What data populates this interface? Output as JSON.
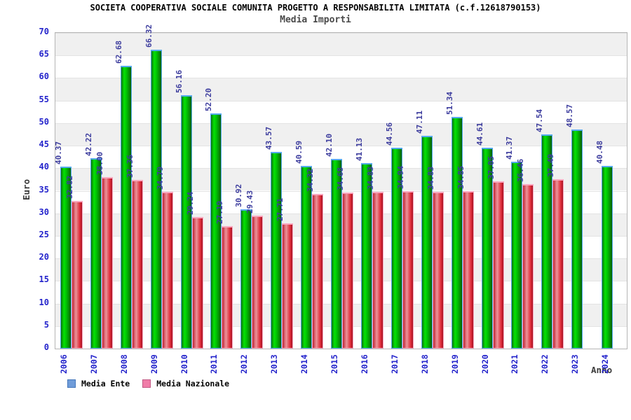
{
  "header": {
    "title": "SOCIETA COOPERATIVA SOCIALE COMUNITA PROGETTO A RESPONSABILITA LIMITATA (c.f.12618790153)",
    "subtitle": "Media Importi"
  },
  "axes": {
    "y_title": "Euro",
    "x_title": "Anno",
    "y_ticks": [
      0,
      5,
      10,
      15,
      20,
      25,
      30,
      35,
      40,
      45,
      50,
      55,
      60,
      65,
      70
    ]
  },
  "legend": [
    {
      "label": "Media Ente",
      "swatch_color": "#6f9cd9",
      "swatch_border": "#4477bb"
    },
    {
      "label": "Media Nazionale",
      "swatch_color": "#f07ca8",
      "swatch_border": "#c25a85"
    }
  ],
  "colors": {
    "bar_green": "#00c403",
    "bar_green_border": "#55aaee",
    "bar_red": "#e4626b",
    "bar_red_border": "#f9a8c0",
    "tick_label_blue": "#2323cb",
    "value_label_blue": "#3d3d9e",
    "band_gray": "#f0f0f0",
    "band_white": "#ffffff"
  },
  "chart_data": {
    "type": "bar",
    "title": "Media Importi",
    "suptitle": "SOCIETA COOPERATIVA SOCIALE COMUNITA PROGETTO A RESPONSABILITA LIMITATA (c.f.12618790153)",
    "xlabel": "Anno",
    "ylabel": "Euro",
    "ylim": [
      0,
      70
    ],
    "ytick_step": 5,
    "grid": "horizontal-bands",
    "legend_position": "bottom-left",
    "value_labels": "rotated-90-above-bars",
    "categories": [
      "2006",
      "2007",
      "2008",
      "2009",
      "2010",
      "2011",
      "2012",
      "2013",
      "2014",
      "2015",
      "2016",
      "2017",
      "2018",
      "2019",
      "2020",
      "2021",
      "2022",
      "2023",
      "2024"
    ],
    "series": [
      {
        "name": "Media Ente",
        "values": [
          40.37,
          42.22,
          62.68,
          66.32,
          56.16,
          52.2,
          30.92,
          43.57,
          40.59,
          42.1,
          41.13,
          44.56,
          47.11,
          51.34,
          44.61,
          41.37,
          47.54,
          48.57,
          40.48
        ]
      },
      {
        "name": "Media Nazionale",
        "values": [
          32.82,
          38.0,
          37.36,
          34.79,
          29.24,
          27.19,
          29.43,
          27.71,
          34.32,
          34.68,
          34.83,
          34.94,
          34.83,
          34.85,
          37.05,
          36.46,
          37.49,
          null,
          null
        ]
      }
    ]
  }
}
